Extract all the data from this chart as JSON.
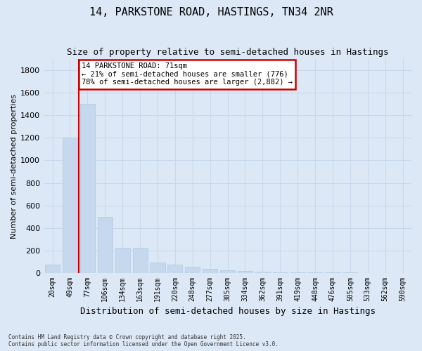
{
  "title1": "14, PARKSTONE ROAD, HASTINGS, TN34 2NR",
  "title2": "Size of property relative to semi-detached houses in Hastings",
  "xlabel": "Distribution of semi-detached houses by size in Hastings",
  "ylabel": "Number of semi-detached properties",
  "categories": [
    "20sqm",
    "49sqm",
    "77sqm",
    "106sqm",
    "134sqm",
    "163sqm",
    "191sqm",
    "220sqm",
    "248sqm",
    "277sqm",
    "305sqm",
    "334sqm",
    "362sqm",
    "391sqm",
    "419sqm",
    "448sqm",
    "476sqm",
    "505sqm",
    "533sqm",
    "562sqm",
    "590sqm"
  ],
  "values": [
    75,
    1200,
    1500,
    500,
    220,
    220,
    90,
    75,
    55,
    35,
    25,
    15,
    8,
    5,
    3,
    2,
    1,
    1,
    0,
    0,
    0
  ],
  "bar_color": "#c5d8ee",
  "bar_edge_color": "#b0c8e0",
  "grid_color": "#c8d8ec",
  "background_color": "#dce8f5",
  "vline_color": "#cc0000",
  "annotation_text": "14 PARKSTONE ROAD: 71sqm\n← 21% of semi-detached houses are smaller (776)\n78% of semi-detached houses are larger (2,882) →",
  "annotation_box_facecolor": "#ffffff",
  "annotation_box_edgecolor": "#cc0000",
  "ylim": [
    0,
    1900
  ],
  "yticks": [
    0,
    200,
    400,
    600,
    800,
    1000,
    1200,
    1400,
    1600,
    1800
  ],
  "footer1": "Contains HM Land Registry data © Crown copyright and database right 2025.",
  "footer2": "Contains public sector information licensed under the Open Government Licence v3.0."
}
